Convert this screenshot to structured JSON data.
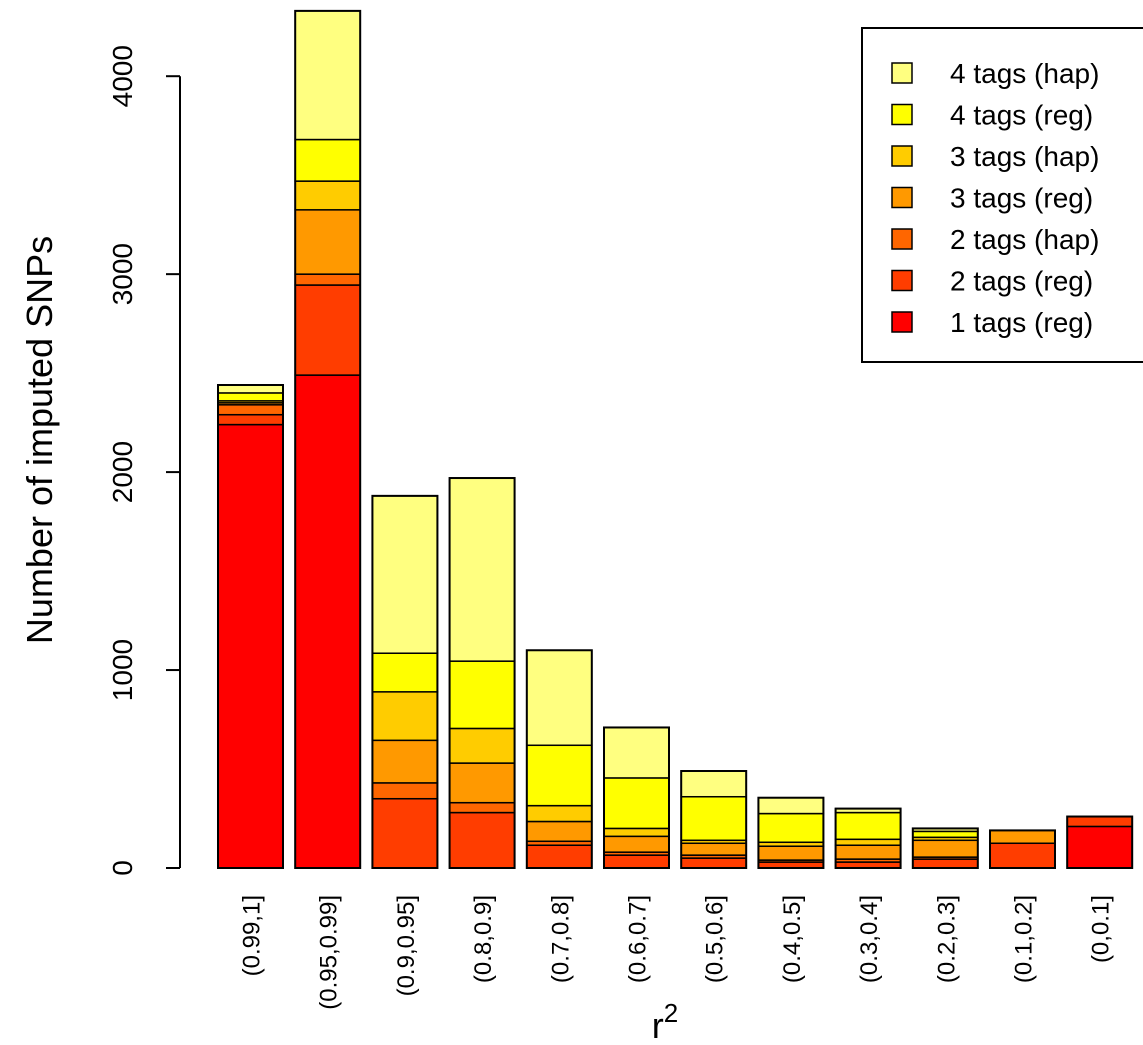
{
  "chart_data": {
    "type": "bar",
    "stacked": true,
    "xlabel": "r",
    "xlabel_superscript": "2",
    "ylabel": "Number of imputed SNPs",
    "ylim": [
      0,
      4330
    ],
    "yticks": [
      0,
      1000,
      2000,
      3000,
      4000
    ],
    "ytick_labels": [
      "0",
      "1000",
      "2000",
      "3000",
      "4000"
    ],
    "grid": false,
    "legend_position": "top-right",
    "categories": [
      "(0.99,1]",
      "(0.95,0.99]",
      "(0.9,0.95]",
      "(0.8,0.9]",
      "(0.7,0.8]",
      "(0.6,0.7]",
      "(0.5,0.6]",
      "(0.4,0.5]",
      "(0.3,0.4]",
      "(0.2,0.3]",
      "(0.1,0.2]",
      "(0,0.1]"
    ],
    "series": [
      {
        "name": "1 tags (reg)",
        "color": "#FF0000",
        "values": [
          2240,
          2490,
          0,
          0,
          0,
          0,
          0,
          0,
          0,
          0,
          0,
          210
        ]
      },
      {
        "name": "2 tags (reg)",
        "color": "#FF3D00",
        "values": [
          50,
          455,
          350,
          280,
          115,
          65,
          50,
          30,
          30,
          45,
          125,
          50
        ]
      },
      {
        "name": "2 tags (hap)",
        "color": "#FF6600",
        "values": [
          50,
          55,
          80,
          50,
          20,
          15,
          15,
          10,
          15,
          10,
          0,
          0
        ]
      },
      {
        "name": "3 tags (reg)",
        "color": "#FF9900",
        "values": [
          10,
          325,
          215,
          200,
          100,
          80,
          60,
          70,
          70,
          85,
          65,
          0
        ]
      },
      {
        "name": "3 tags (hap)",
        "color": "#FFCC00",
        "values": [
          10,
          145,
          245,
          175,
          80,
          40,
          15,
          20,
          30,
          15,
          0,
          0
        ]
      },
      {
        "name": "4 tags (reg)",
        "color": "#FFFF00",
        "values": [
          40,
          210,
          195,
          340,
          305,
          255,
          220,
          145,
          135,
          30,
          0,
          0
        ]
      },
      {
        "name": "4 tags (hap)",
        "color": "#FFFF80",
        "values": [
          40,
          650,
          795,
          925,
          480,
          255,
          130,
          80,
          20,
          15,
          0,
          0
        ]
      }
    ]
  }
}
